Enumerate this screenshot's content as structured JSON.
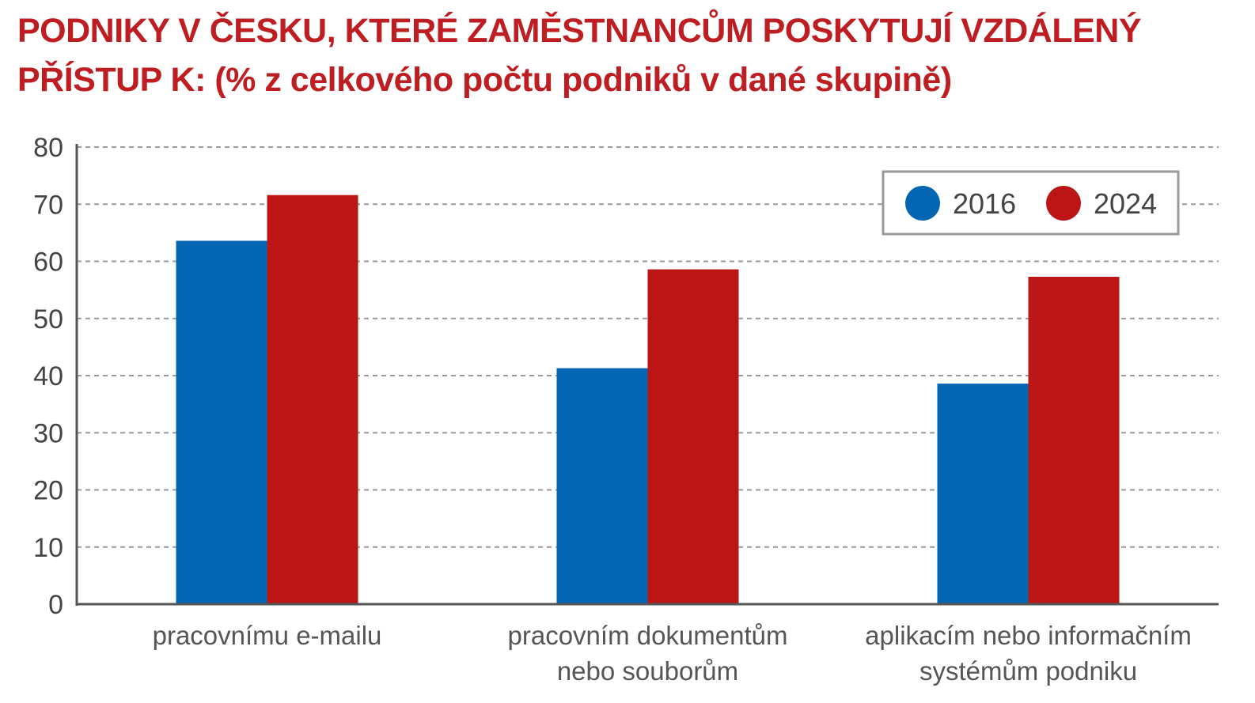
{
  "title": {
    "line1": "PODNIKY V ČESKU, KTERÉ ZAMĚSTNANCŮM POSKYTUJÍ VZDÁLENÝ",
    "line2": "PŘÍSTUP K: (% z celkového počtu podniků v dané skupině)"
  },
  "colors": {
    "2016": "#0266b3",
    "2024": "#bb1516",
    "grid": "#9a9a9a",
    "axis": "#555555"
  },
  "chart_data": {
    "type": "bar",
    "title": "PODNIKY V ČESKU, KTERÉ ZAMĚSTNANCŮM POSKYTUJÍ VZDÁLENÝ PŘÍSTUP K: (% z celkového počtu podniků v dané skupině)",
    "categories": [
      [
        "pracovnímu e-mailu"
      ],
      [
        "pracovním dokumentům",
        "nebo souborům"
      ],
      [
        "aplikacím nebo informačním",
        "systémům podniku"
      ]
    ],
    "series": [
      {
        "name": "2016",
        "values": [
          63.6,
          41.3,
          38.6
        ]
      },
      {
        "name": "2024",
        "values": [
          71.6,
          58.6,
          57.3
        ]
      }
    ],
    "yticks": [
      "0",
      "10",
      "20",
      "30",
      "40",
      "50",
      "60",
      "70",
      "80"
    ],
    "ylim": [
      0,
      80
    ],
    "grid": true,
    "legend_position": "top-right",
    "xlabel": "",
    "ylabel": ""
  }
}
